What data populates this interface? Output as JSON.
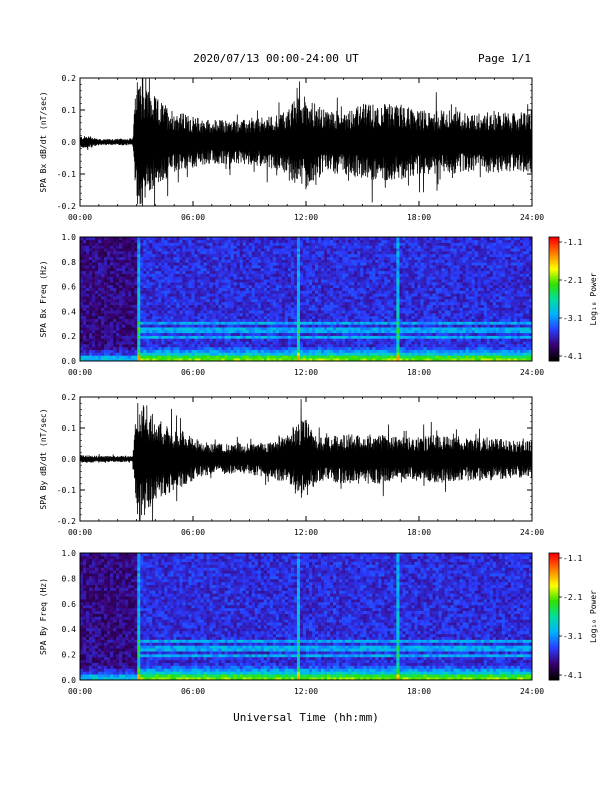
{
  "header": {
    "title": "2020/07/13  00:00-24:00 UT",
    "page": "Page 1/1"
  },
  "xlabel": "Universal Time (hh:mm)",
  "colors": {
    "trace": "#000000",
    "colormap": [
      "#000000",
      "#3a0070",
      "#2a3bff",
      "#00b0ff",
      "#00e0a0",
      "#30e000",
      "#ffff00",
      "#ff8000",
      "#ff0000"
    ]
  },
  "chart_data": [
    {
      "type": "line",
      "panel": "bx-trace",
      "ylabel": "SPA Bx dB/dt (nT/sec)",
      "xlim": [
        0,
        24
      ],
      "ylim": [
        -0.2,
        0.2
      ],
      "xticks": [
        "00:00",
        "06:00",
        "12:00",
        "18:00",
        "24:00"
      ],
      "yticks": [
        "0.2",
        "0.1",
        "0.0",
        "-0.1",
        "-0.2"
      ],
      "envelope": {
        "x": [
          0,
          0.5,
          1,
          2,
          2.8,
          3.0,
          3.3,
          3.6,
          4,
          4.5,
          5,
          5.5,
          6,
          7,
          8,
          9,
          10,
          11,
          11.5,
          12,
          12.5,
          13,
          14,
          15,
          16,
          17,
          18,
          19,
          20,
          21,
          22,
          23,
          24
        ],
        "amp": [
          0.018,
          0.02,
          0.01,
          0.01,
          0.012,
          0.2,
          0.2,
          0.17,
          0.14,
          0.12,
          0.1,
          0.09,
          0.08,
          0.07,
          0.07,
          0.07,
          0.08,
          0.1,
          0.14,
          0.15,
          0.12,
          0.1,
          0.1,
          0.12,
          0.12,
          0.12,
          0.1,
          0.1,
          0.1,
          0.09,
          0.1,
          0.09,
          0.1
        ]
      }
    },
    {
      "type": "heatmap",
      "panel": "bx-spectrogram",
      "ylabel": "SPA Bx Freq (Hz)",
      "colorbar_label": "Log₁₀ Power",
      "colorbar_ticks": [
        "-1.1",
        "-2.1",
        "-3.1",
        "-4.1"
      ],
      "clim": [
        -4.1,
        -1.1
      ],
      "xlim": [
        0,
        24
      ],
      "ylim": [
        0.0,
        1.0
      ],
      "xticks": [
        "00:00",
        "06:00",
        "12:00",
        "18:00",
        "24:00"
      ],
      "yticks": [
        "1.0",
        "0.8",
        "0.6",
        "0.4",
        "0.2",
        "0.0"
      ],
      "vertical_features_hours": [
        3.1,
        11.6,
        16.9
      ],
      "horizontal_bands_hz": [
        0.31,
        0.25,
        0.19
      ]
    },
    {
      "type": "line",
      "panel": "by-trace",
      "ylabel": "SPA By dB/dt (nT/sec)",
      "xlim": [
        0,
        24
      ],
      "ylim": [
        -0.2,
        0.2
      ],
      "xticks": [
        "00:00",
        "06:00",
        "12:00",
        "18:00",
        "24:00"
      ],
      "yticks": [
        "0.2",
        "0.1",
        "0.0",
        "-0.1",
        "-0.2"
      ],
      "envelope": {
        "x": [
          0,
          0.5,
          1,
          2,
          2.8,
          3.0,
          3.3,
          3.6,
          4,
          4.5,
          5,
          5.5,
          6,
          7,
          8,
          9,
          10,
          11,
          11.5,
          12,
          12.5,
          13,
          14,
          15,
          16,
          17,
          18,
          19,
          20,
          21,
          22,
          23,
          24
        ],
        "amp": [
          0.015,
          0.012,
          0.01,
          0.01,
          0.012,
          0.18,
          0.2,
          0.17,
          0.13,
          0.12,
          0.1,
          0.09,
          0.07,
          0.05,
          0.05,
          0.05,
          0.06,
          0.08,
          0.12,
          0.13,
          0.08,
          0.07,
          0.08,
          0.08,
          0.08,
          0.07,
          0.07,
          0.08,
          0.07,
          0.07,
          0.07,
          0.06,
          0.06
        ]
      }
    },
    {
      "type": "heatmap",
      "panel": "by-spectrogram",
      "ylabel": "SPA By Freq (Hz)",
      "colorbar_label": "Log₁₀ Power",
      "colorbar_ticks": [
        "-1.1",
        "-2.1",
        "-3.1",
        "-4.1"
      ],
      "clim": [
        -4.1,
        -1.1
      ],
      "xlim": [
        0,
        24
      ],
      "ylim": [
        0.0,
        1.0
      ],
      "xticks": [
        "00:00",
        "06:00",
        "12:00",
        "18:00",
        "24:00"
      ],
      "yticks": [
        "1.0",
        "0.8",
        "0.6",
        "0.4",
        "0.2",
        "0.0"
      ],
      "vertical_features_hours": [
        3.1,
        11.6,
        16.9
      ],
      "horizontal_bands_hz": [
        0.31,
        0.25,
        0.19
      ]
    }
  ]
}
